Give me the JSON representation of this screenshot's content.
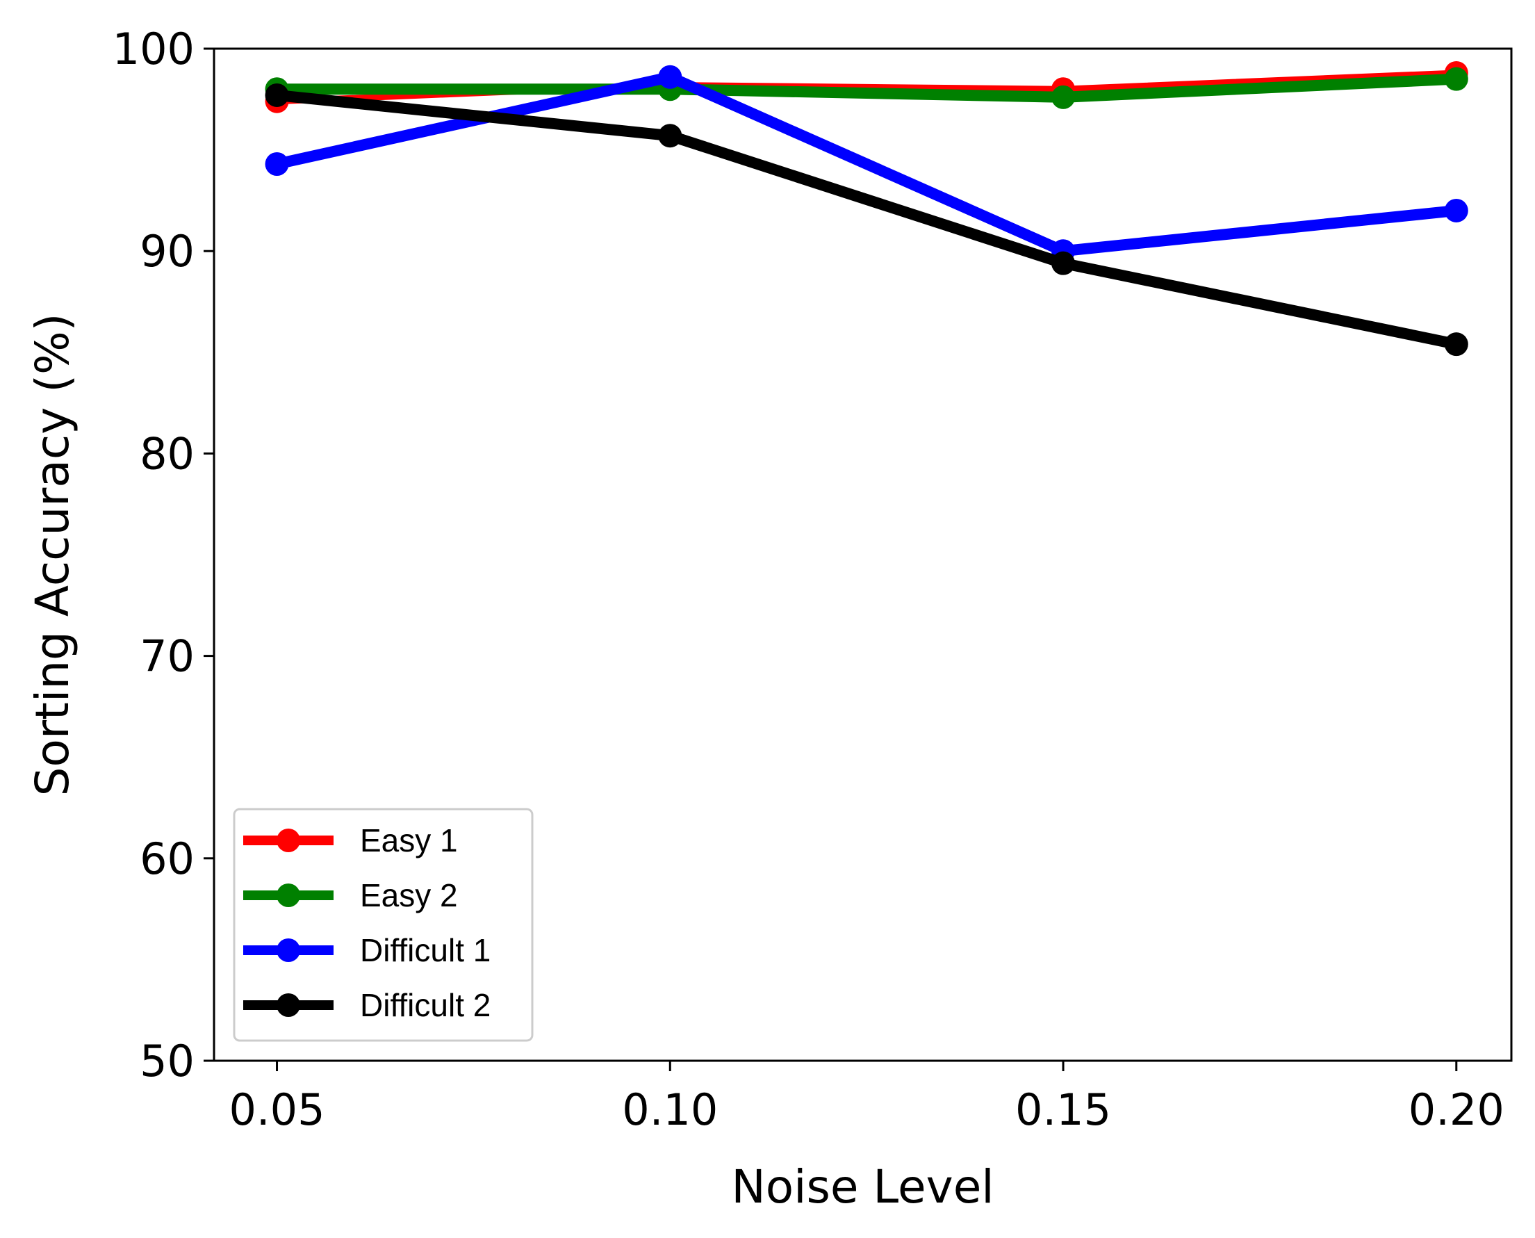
{
  "chart_data": {
    "type": "line",
    "title": "",
    "xlabel": "Noise Level",
    "ylabel": "Sorting Accuracy (%)",
    "x": [
      0.05,
      0.1,
      0.15,
      0.2
    ],
    "x_tick_labels": [
      "0.05",
      "0.10",
      "0.15",
      "0.20"
    ],
    "y_ticks": [
      50,
      60,
      70,
      80,
      90,
      100
    ],
    "y_tick_labels": [
      "50",
      "60",
      "70",
      "80",
      "90",
      "100"
    ],
    "xlim": [
      0.042,
      0.207
    ],
    "ylim": [
      50,
      100
    ],
    "grid": false,
    "legend_position": "lower-left",
    "series": [
      {
        "name": "Easy 1",
        "color": "#ff0000",
        "values": [
          97.4,
          98.2,
          98.0,
          98.8
        ]
      },
      {
        "name": "Easy 2",
        "color": "#008000",
        "values": [
          98.0,
          98.0,
          97.6,
          98.5
        ]
      },
      {
        "name": "Difficult 1",
        "color": "#0000ff",
        "values": [
          94.3,
          98.6,
          90.0,
          92.0
        ]
      },
      {
        "name": "Difficult 2",
        "color": "#000000",
        "values": [
          97.7,
          95.7,
          89.4,
          85.4
        ]
      }
    ]
  }
}
